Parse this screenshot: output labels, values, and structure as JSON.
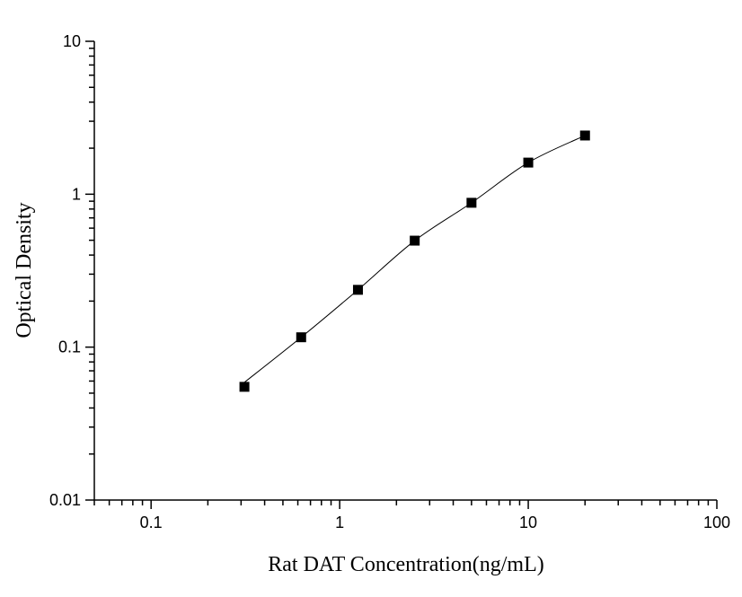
{
  "chart_data": {
    "type": "scatter",
    "title": "",
    "xlabel": "Rat DAT Concentration(ng/mL)",
    "ylabel": "Optical Density",
    "xscale": "log",
    "yscale": "log",
    "xlim": [
      0.05,
      100
    ],
    "ylim": [
      0.01,
      10
    ],
    "xticks": [
      0.1,
      1,
      10,
      100
    ],
    "xtick_labels": [
      "0.1",
      "1",
      "10",
      "100"
    ],
    "yticks": [
      0.01,
      0.1,
      1,
      10
    ],
    "ytick_labels": [
      "0.01",
      "0.1",
      "1",
      "10"
    ],
    "grid": false,
    "legend": "none",
    "marker": "square",
    "fit_curve": true,
    "color": "#000000",
    "series": [
      {
        "x": [
          0.3125,
          0.625,
          1.25,
          2.5,
          5,
          10,
          20
        ],
        "y": [
          0.055,
          0.116,
          0.237,
          0.497,
          0.879,
          1.61,
          2.42
        ]
      }
    ]
  }
}
